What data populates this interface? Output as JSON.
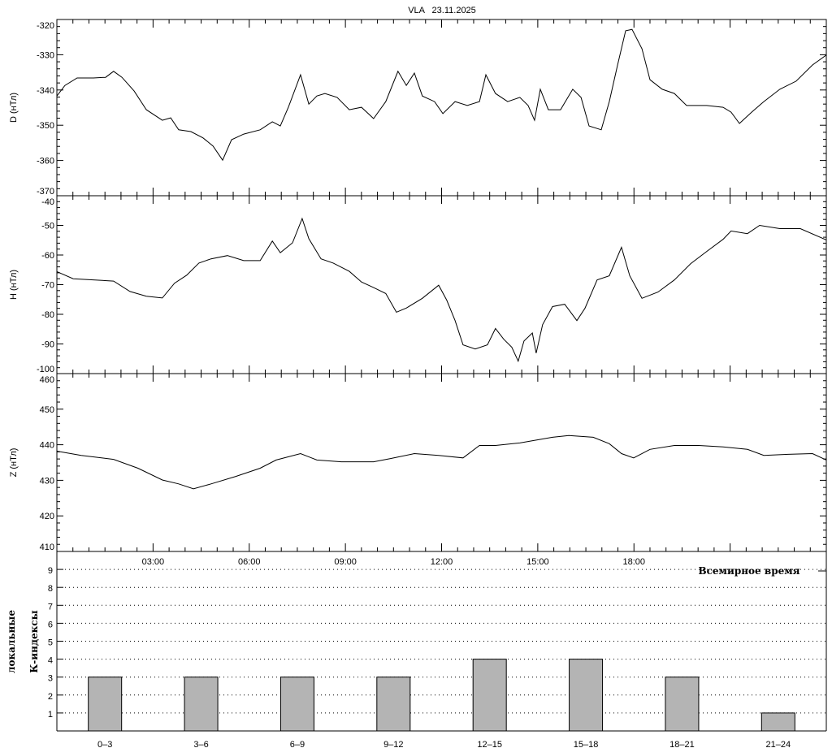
{
  "chart_data": [
    {
      "type": "line",
      "title": "VLA   23.11.2025",
      "ylabel": "D (нТл)",
      "ylim": [
        -370,
        -320
      ],
      "yticks": [
        "-320",
        "-330",
        "-340",
        "-350",
        "-360",
        "-370"
      ],
      "xlim": [
        0,
        24
      ],
      "x": [
        0,
        0.25,
        0.63,
        1.14,
        1.52,
        1.77,
        2.03,
        2.41,
        2.79,
        3.29,
        3.55,
        3.8,
        4.18,
        4.56,
        4.87,
        5.17,
        5.45,
        5.83,
        6.34,
        6.72,
        6.97,
        7.22,
        7.6,
        7.86,
        8.11,
        8.36,
        8.74,
        9.12,
        9.5,
        9.88,
        10.26,
        10.64,
        10.9,
        11.15,
        11.4,
        11.78,
        12.04,
        12.42,
        12.8,
        13.18,
        13.38,
        13.68,
        14.06,
        14.44,
        14.7,
        14.9,
        15.08,
        15.33,
        15.71,
        16.09,
        16.35,
        16.6,
        16.98,
        17.23,
        17.49,
        17.74,
        17.94,
        18.25,
        18.5,
        18.88,
        19.26,
        19.64,
        20.27,
        20.78,
        21.03,
        21.29,
        21.67,
        22.05,
        22.55,
        23.06,
        23.57,
        24
      ],
      "y": [
        -341.7,
        -338.7,
        -336.6,
        -336.6,
        -336.4,
        -334.7,
        -336.4,
        -340.3,
        -345.6,
        -348.6,
        -347.9,
        -351.3,
        -351.8,
        -353.6,
        -355.9,
        -359.9,
        -354.1,
        -352.5,
        -351.3,
        -349.0,
        -350.2,
        -344.9,
        -335.7,
        -344.0,
        -341.7,
        -341.0,
        -342.1,
        -345.6,
        -344.9,
        -348.1,
        -343.3,
        -334.7,
        -338.7,
        -335.2,
        -341.7,
        -343.3,
        -346.7,
        -343.3,
        -344.4,
        -343.3,
        -335.7,
        -341.0,
        -343.3,
        -342.1,
        -344.4,
        -348.6,
        -339.8,
        -345.6,
        -345.6,
        -339.8,
        -342.1,
        -350.2,
        -351.3,
        -343.3,
        -332.9,
        -323.2,
        -322.8,
        -328.3,
        -337.1,
        -339.8,
        -341.0,
        -344.4,
        -344.4,
        -344.9,
        -346.3,
        -349.5,
        -346.3,
        -343.3,
        -339.8,
        -337.5,
        -332.9,
        -330.1
      ]
    },
    {
      "type": "line",
      "ylabel": "H (нТл)",
      "ylim": [
        -100,
        -40
      ],
      "yticks": [
        "-40",
        "-50",
        "-60",
        "-70",
        "-80",
        "-90",
        "-100"
      ],
      "xlim": [
        0,
        24
      ],
      "x": [
        0,
        0.51,
        1.77,
        2.28,
        2.79,
        3.29,
        3.67,
        4.05,
        4.43,
        4.81,
        5.32,
        5.83,
        6.34,
        6.72,
        6.97,
        7.35,
        7.65,
        7.86,
        8.24,
        8.62,
        9.12,
        9.5,
        9.88,
        10.26,
        10.59,
        10.9,
        11.4,
        11.91,
        12.16,
        12.42,
        12.67,
        13.05,
        13.43,
        13.68,
        13.94,
        14.19,
        14.39,
        14.57,
        14.83,
        14.95,
        15.15,
        15.46,
        15.84,
        16.22,
        16.47,
        16.85,
        17.23,
        17.61,
        17.87,
        18.25,
        18.75,
        19.26,
        19.77,
        20.27,
        20.78,
        21.03,
        21.54,
        21.92,
        22.55,
        23.19,
        24
      ],
      "y": [
        -65.6,
        -68.0,
        -68.8,
        -72.3,
        -73.9,
        -74.5,
        -69.5,
        -66.8,
        -62.7,
        -61.3,
        -60.2,
        -61.9,
        -61.9,
        -55.3,
        -59.2,
        -55.9,
        -47.7,
        -54.5,
        -61.3,
        -62.7,
        -65.5,
        -69.1,
        -71.0,
        -73.0,
        -79.3,
        -77.9,
        -74.6,
        -70.2,
        -75.2,
        -82.1,
        -90.3,
        -91.7,
        -90.3,
        -84.8,
        -88.4,
        -91.1,
        -95.8,
        -89.0,
        -86.3,
        -93.1,
        -83.5,
        -77.4,
        -76.6,
        -82.1,
        -78.0,
        -68.4,
        -67.0,
        -57.4,
        -67.0,
        -74.6,
        -72.5,
        -68.4,
        -62.9,
        -58.8,
        -54.7,
        -51.9,
        -52.8,
        -50.0,
        -51.1,
        -51.1,
        -54.9
      ]
    },
    {
      "type": "line",
      "ylabel": "Z (нТл)",
      "ylim": [
        410,
        460
      ],
      "yticks": [
        "460",
        "450",
        "440",
        "430",
        "420",
        "410"
      ],
      "xlim": [
        0,
        24
      ],
      "xticks": [
        "03:00",
        "06:00",
        "09:00",
        "12:00",
        "15:00",
        "18:00"
      ],
      "xlabel": "Всемирное время",
      "x": [
        0,
        0.76,
        1.77,
        2.53,
        3.29,
        3.8,
        4.26,
        4.81,
        5.58,
        6.34,
        6.84,
        7.6,
        8.11,
        8.87,
        9.88,
        10.39,
        11.15,
        11.91,
        12.67,
        13.18,
        13.68,
        14.44,
        15.46,
        15.97,
        16.73,
        17.23,
        17.61,
        17.99,
        18.5,
        19.26,
        20.02,
        20.78,
        21.54,
        22.05,
        22.81,
        23.57,
        24
      ],
      "y": [
        438.2,
        437.0,
        435.9,
        433.4,
        430.1,
        429.0,
        427.6,
        429.0,
        431.1,
        433.4,
        435.7,
        437.5,
        435.7,
        435.2,
        435.2,
        436.1,
        437.5,
        437.0,
        436.3,
        439.8,
        439.8,
        440.5,
        442.1,
        442.6,
        442.1,
        440.3,
        437.5,
        436.3,
        438.7,
        439.8,
        439.8,
        439.4,
        438.7,
        437.0,
        437.3,
        437.5,
        435.7
      ]
    },
    {
      "type": "bar",
      "ylabel": [
        "локальные",
        "К-индексы"
      ],
      "ylim": [
        0,
        10
      ],
      "yticks": [
        "1",
        "2",
        "3",
        "4",
        "5",
        "6",
        "7",
        "8",
        "9"
      ],
      "categories": [
        "0–3",
        "3–6",
        "6–9",
        "9–12",
        "12–15",
        "15–18",
        "18–21",
        "21–24"
      ],
      "values": [
        3,
        3,
        3,
        3,
        4,
        4,
        3,
        1
      ],
      "grid": "dotted horizontal",
      "bar_color": "#b4b4b4"
    }
  ]
}
